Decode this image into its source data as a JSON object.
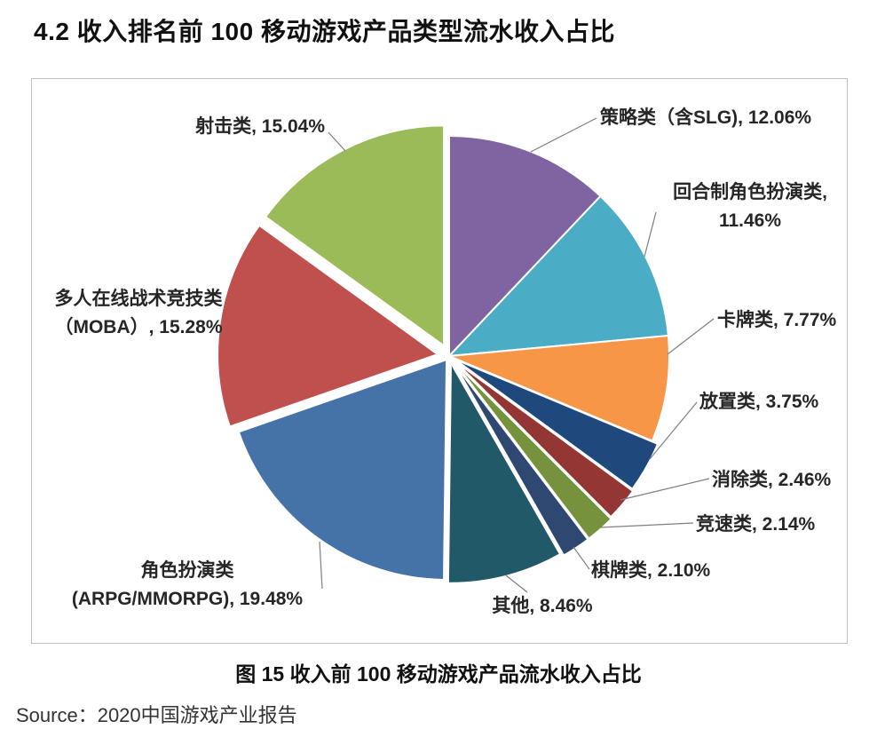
{
  "page": {
    "title": "4.2 收入排名前 100 移动游戏产品类型流水收入占比",
    "caption": "图 15 收入前 100 移动游戏产品流水收入占比",
    "source": "Source：2020中国游戏产业报告"
  },
  "chart_data": {
    "type": "pie",
    "title": "图 15 收入前 100 移动游戏产品流水收入占比",
    "unit": "%",
    "start": "top",
    "direction": "clockwise",
    "legend": "none",
    "label_position": "outside-with-leader-lines",
    "slices": [
      {
        "id": "strategy-slg",
        "name": "策略类（含SLG)",
        "value": 12.06,
        "color": "#8064A2",
        "label_lines": [
          "策略类（含SLG), 12.06%"
        ]
      },
      {
        "id": "turn-based-rpg",
        "name": "回合制角色扮演类",
        "value": 11.46,
        "color": "#4BACC6",
        "label_lines": [
          "回合制角色扮演类,",
          "11.46%"
        ]
      },
      {
        "id": "card",
        "name": "卡牌类",
        "value": 7.77,
        "color": "#F79646",
        "label_lines": [
          "卡牌类, 7.77%"
        ]
      },
      {
        "id": "idle",
        "name": "放置类",
        "value": 3.75,
        "color": "#1F497D",
        "label_lines": [
          "放置类, 3.75%"
        ]
      },
      {
        "id": "match-elimination",
        "name": "消除类",
        "value": 2.46,
        "color": "#943634",
        "label_lines": [
          "消除类, 2.46%"
        ]
      },
      {
        "id": "racing",
        "name": "竞速类",
        "value": 2.14,
        "color": "#76923C",
        "label_lines": [
          "竞速类, 2.14%"
        ]
      },
      {
        "id": "board-card",
        "name": "棋牌类",
        "value": 2.1,
        "color": "#2E4871",
        "label_lines": [
          "棋牌类, 2.10%"
        ]
      },
      {
        "id": "other",
        "name": "其他",
        "value": 8.46,
        "color": "#215968",
        "label_lines": [
          "其他, 8.46%"
        ]
      },
      {
        "id": "arpg-mmorpg",
        "name": "角色扮演类 (ARPG/MMORPG)",
        "value": 19.48,
        "color": "#4572A7",
        "label_lines": [
          "角色扮演类",
          "(ARPG/MMORPG), 19.48%"
        ]
      },
      {
        "id": "moba",
        "name": "多人在线战术竞技类（MOBA）",
        "value": 15.28,
        "color": "#C0504D",
        "label_lines": [
          "多人在线战术竞技类",
          "（MOBA）, 15.28%"
        ]
      },
      {
        "id": "shooter",
        "name": "射击类",
        "value": 15.04,
        "color": "#9BBB59",
        "label_lines": [
          "射击类, 15.04%"
        ]
      }
    ]
  }
}
